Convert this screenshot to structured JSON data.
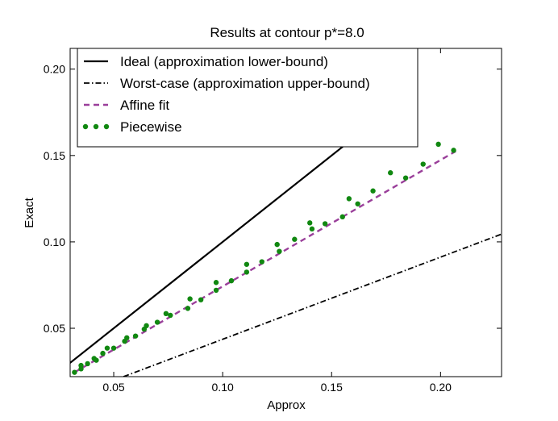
{
  "chart_data": {
    "type": "line",
    "title": "Results at contour p*=8.0",
    "xlabel": "Approx",
    "ylabel": "Exact",
    "xlim": [
      0.03,
      0.228
    ],
    "ylim": [
      0.022,
      0.212
    ],
    "xticks": [
      0.05,
      0.1,
      0.15,
      0.2
    ],
    "xtick_labels": [
      "0.05",
      "0.10",
      "0.15",
      "0.20"
    ],
    "yticks": [
      0.05,
      0.1,
      0.15,
      0.2
    ],
    "ytick_labels": [
      "0.05",
      "0.10",
      "0.15",
      "0.20"
    ],
    "grid": false,
    "legend_position": "top-left",
    "series": [
      {
        "name": "Ideal (approximation lower-bound)",
        "style": "solid",
        "color": "#000000",
        "x": [
          0.0292,
          0.157
        ],
        "y": [
          0.0292,
          0.157
        ]
      },
      {
        "name": "Worst-case (approximation upper-bound)",
        "style": "dashdot",
        "color": "#000000",
        "x": [
          0.0545,
          0.228
        ],
        "y": [
          0.022,
          0.1045
        ]
      },
      {
        "name": "Affine fit",
        "style": "dashed",
        "color": "#9a3f9a",
        "x": [
          0.032,
          0.207
        ],
        "y": [
          0.0245,
          0.1525
        ]
      },
      {
        "name": "Piecewise",
        "style": "dots",
        "color": "#118811",
        "x": [
          0.032,
          0.035,
          0.035,
          0.038,
          0.041,
          0.042,
          0.045,
          0.047,
          0.05,
          0.055,
          0.056,
          0.06,
          0.064,
          0.065,
          0.07,
          0.074,
          0.076,
          0.084,
          0.085,
          0.09,
          0.097,
          0.097,
          0.104,
          0.111,
          0.111,
          0.118,
          0.125,
          0.126,
          0.133,
          0.14,
          0.141,
          0.147,
          0.155,
          0.158,
          0.162,
          0.169,
          0.177,
          0.184,
          0.192,
          0.199,
          0.206
        ],
        "y": [
          0.0245,
          0.0265,
          0.0285,
          0.0295,
          0.0325,
          0.0315,
          0.0355,
          0.0385,
          0.0385,
          0.0425,
          0.0445,
          0.0455,
          0.0495,
          0.0515,
          0.0535,
          0.0585,
          0.0575,
          0.0615,
          0.067,
          0.0665,
          0.072,
          0.0765,
          0.0775,
          0.0825,
          0.087,
          0.0885,
          0.0985,
          0.0945,
          0.1015,
          0.111,
          0.1075,
          0.1105,
          0.1145,
          0.125,
          0.122,
          0.1295,
          0.14,
          0.137,
          0.145,
          0.1565,
          0.153
        ]
      }
    ]
  }
}
